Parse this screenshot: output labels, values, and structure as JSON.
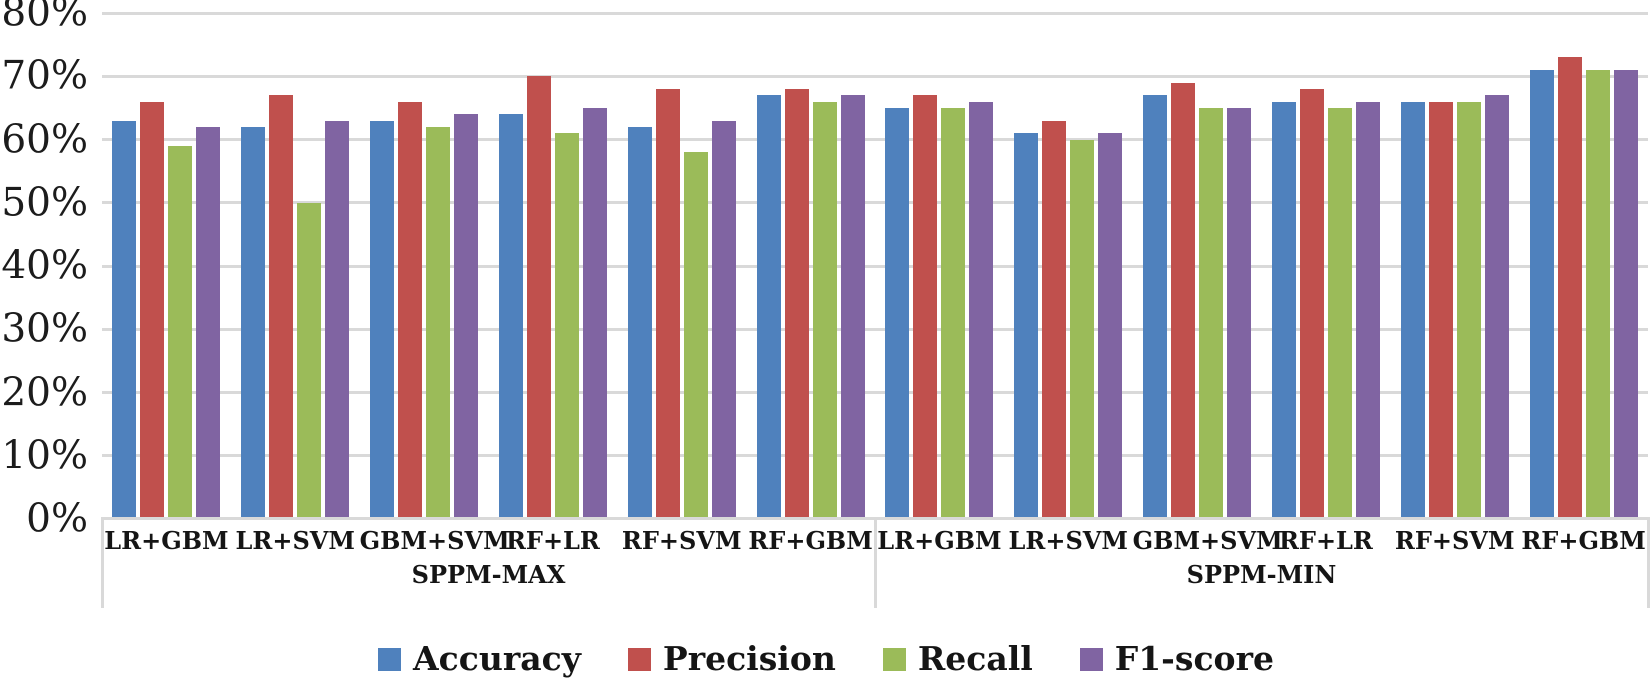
{
  "chart_data": {
    "type": "bar",
    "title": "",
    "xlabel": "",
    "ylabel": "",
    "y_axis": {
      "min": 0,
      "max": 80,
      "step": 10,
      "unit": "%",
      "tick_labels": [
        "0%",
        "10%",
        "20%",
        "30%",
        "40%",
        "50%",
        "60%",
        "70%",
        "80%"
      ]
    },
    "ylim": [
      0,
      80
    ],
    "grid": true,
    "gridline_color": "#D9D9D9",
    "axis_color": "#D9D9D9",
    "groups": [
      {
        "label": "SPPM-MAX",
        "categories": [
          "LR+GBM",
          "LR+SVM",
          "GBM+SVM",
          "RF+LR",
          "RF+SVM",
          "RF+GBM"
        ]
      },
      {
        "label": "SPPM-MIN",
        "categories": [
          "LR+GBM",
          "LR+SVM",
          "GBM+SVM",
          "RF+LR",
          "RF+SVM",
          "RF+GBM"
        ]
      }
    ],
    "series": [
      {
        "name": "Accuracy",
        "color": "#4F81BD",
        "values": [
          63,
          62,
          63,
          64,
          62,
          67,
          65,
          61,
          67,
          66,
          66,
          71
        ]
      },
      {
        "name": "Precision",
        "color": "#C0504D",
        "values": [
          66,
          67,
          66,
          70,
          68,
          68,
          67,
          63,
          69,
          68,
          66,
          73
        ]
      },
      {
        "name": "Recall",
        "color": "#9BBB59",
        "values": [
          59,
          50,
          62,
          61,
          58,
          66,
          65,
          60,
          65,
          65,
          66,
          71
        ]
      },
      {
        "name": "F1-score",
        "color": "#8064A2",
        "values": [
          62,
          63,
          64,
          65,
          63,
          67,
          66,
          61,
          65,
          66,
          67,
          71
        ]
      }
    ],
    "legend": {
      "position": "bottom",
      "entries": [
        "Accuracy",
        "Precision",
        "Recall",
        "F1-score"
      ]
    }
  }
}
